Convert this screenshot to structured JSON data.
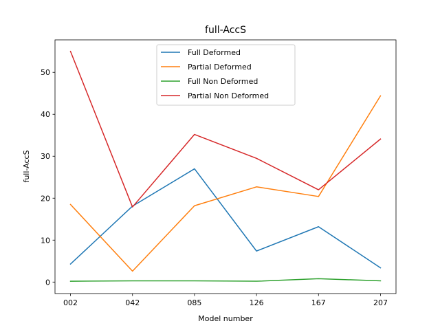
{
  "chart_data": {
    "type": "line",
    "title": "full-AccS",
    "xlabel": "Model number",
    "ylabel": "full-AccS",
    "categories": [
      "002",
      "042",
      "085",
      "126",
      "167",
      "207"
    ],
    "ylim": [
      -2.74,
      57.74
    ],
    "yticks": [
      0,
      10,
      20,
      30,
      40,
      50
    ],
    "grid": false,
    "legend_placement": "upper-center",
    "series": [
      {
        "name": "Full Deformed",
        "color": "#1f77b4",
        "values": [
          4.3,
          18.1,
          27.0,
          7.4,
          13.2,
          3.4
        ]
      },
      {
        "name": "Partial Deformed",
        "color": "#ff7f0e",
        "values": [
          18.5,
          2.6,
          18.2,
          22.7,
          20.4,
          44.4
        ]
      },
      {
        "name": "Full Non Deformed",
        "color": "#2ca02c",
        "values": [
          0.2,
          0.3,
          0.3,
          0.2,
          0.8,
          0.3
        ]
      },
      {
        "name": "Partial Non Deformed",
        "color": "#d62728",
        "values": [
          55.0,
          17.9,
          35.2,
          29.5,
          22.0,
          34.1
        ]
      }
    ]
  }
}
